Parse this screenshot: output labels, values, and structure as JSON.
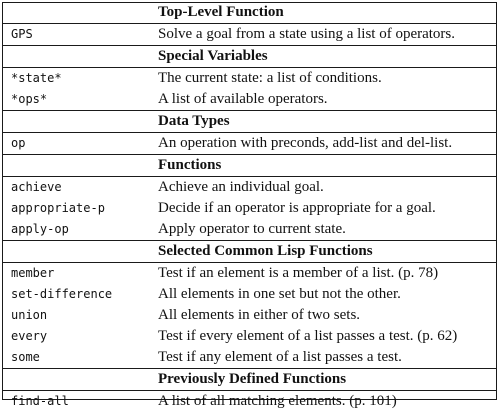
{
  "sections": [
    {
      "title": "Top-Level Function",
      "rows": [
        {
          "term": "GPS",
          "desc": "Solve a goal from a state using a list of operators."
        }
      ]
    },
    {
      "title": "Special Variables",
      "rows": [
        {
          "term": "*state*",
          "desc": "The current state: a list of conditions."
        },
        {
          "term": "*ops*",
          "desc": "A list of available operators."
        }
      ]
    },
    {
      "title": "Data Types",
      "rows": [
        {
          "term": "op",
          "desc": "An operation with preconds, add-list and del-list."
        }
      ]
    },
    {
      "title": "Functions",
      "rows": [
        {
          "term": "achieve",
          "desc": "Achieve an individual goal."
        },
        {
          "term": "appropriate-p",
          "desc": "Decide if an operator is appropriate for a goal."
        },
        {
          "term": "apply-op",
          "desc": "Apply operator to current state."
        }
      ]
    },
    {
      "title": "Selected Common Lisp Functions",
      "rows": [
        {
          "term": "member",
          "desc": "Test if an element is a member of a list. (p. 78)"
        },
        {
          "term": "set-difference",
          "desc": "All elements in one set but not the other."
        },
        {
          "term": "union",
          "desc": "All elements in either of two sets."
        },
        {
          "term": "every",
          "desc": "Test if every element of a list passes a test. (p. 62)"
        },
        {
          "term": "some",
          "desc": "Test if any element of a list passes a test."
        }
      ]
    },
    {
      "title": "Previously Defined Functions",
      "rows": [
        {
          "term": "find-all",
          "desc": "A list of all matching elements. (p. 101)"
        }
      ]
    }
  ]
}
